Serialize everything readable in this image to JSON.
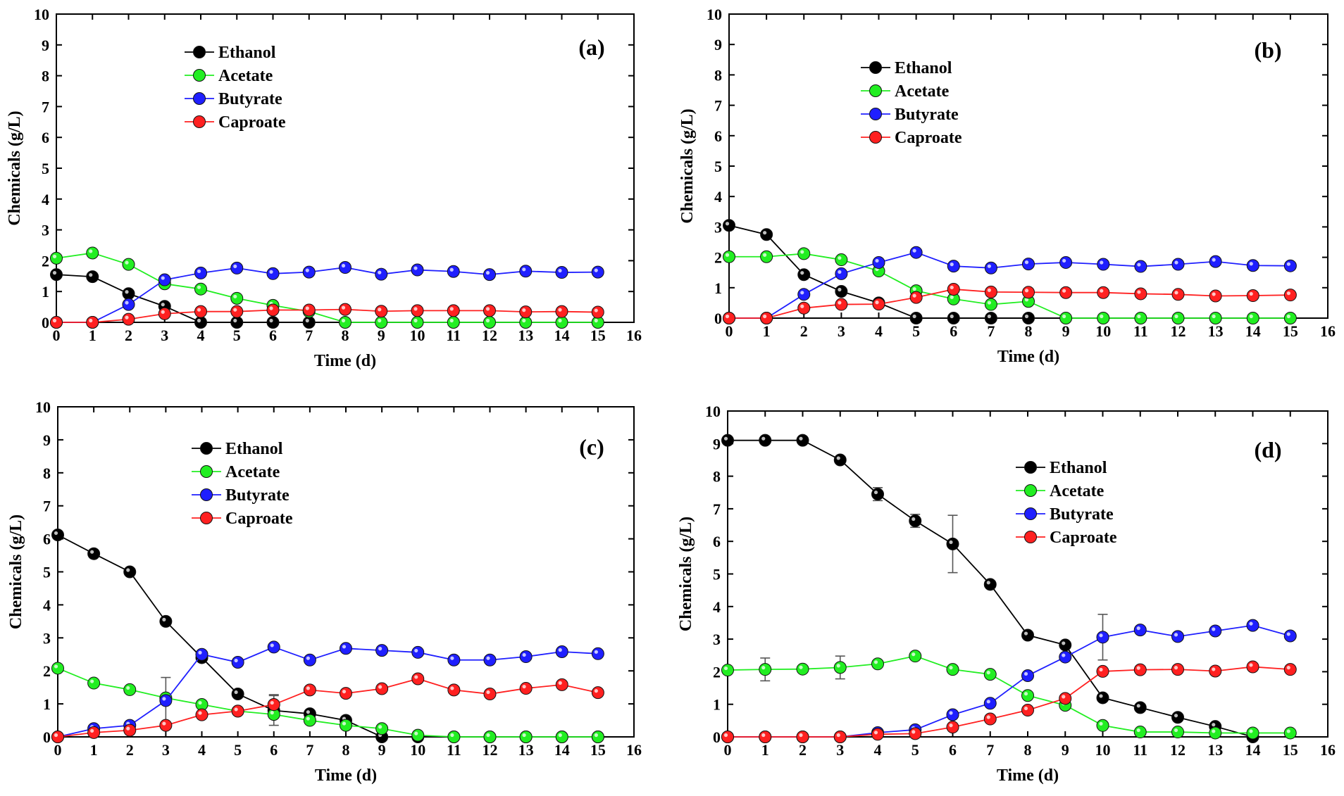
{
  "colors": {
    "Ethanol": "#000000",
    "Acetate": "#22ee22",
    "Butyrate": "#1f1fff",
    "Caproate": "#ff2020"
  },
  "chart_data": [
    {
      "type": "line",
      "panel_label": "(a)",
      "xlabel": "Time (d)",
      "ylabel": "Chemicals (g/L)",
      "xlim": [
        0,
        16
      ],
      "ylim": [
        0,
        10
      ],
      "x_ticks": [
        0,
        1,
        2,
        3,
        4,
        5,
        6,
        7,
        8,
        9,
        10,
        11,
        12,
        13,
        14,
        15,
        16
      ],
      "y_ticks": [
        0,
        1,
        2,
        3,
        4,
        5,
        6,
        7,
        8,
        9,
        10
      ],
      "legend_position": "upper-left-center",
      "x": [
        0,
        1,
        2,
        3,
        4,
        5,
        6,
        7,
        8,
        9,
        10,
        11,
        12,
        13,
        14,
        15
      ],
      "series": [
        {
          "name": "Ethanol",
          "values": [
            1.55,
            1.48,
            0.93,
            0.52,
            0,
            0,
            0,
            0,
            null,
            null,
            null,
            null,
            null,
            null,
            null,
            null
          ]
        },
        {
          "name": "Acetate",
          "values": [
            2.08,
            2.25,
            1.88,
            1.25,
            1.08,
            0.78,
            0.55,
            0.35,
            0,
            0,
            0,
            0,
            0,
            0,
            0,
            0
          ]
        },
        {
          "name": "Butyrate",
          "values": [
            0,
            0,
            0.58,
            1.38,
            1.6,
            1.76,
            1.58,
            1.63,
            1.78,
            1.56,
            1.7,
            1.65,
            1.55,
            1.66,
            1.62,
            1.63
          ]
        },
        {
          "name": "Caproate",
          "values": [
            0,
            0,
            0.1,
            0.28,
            0.35,
            0.35,
            0.4,
            0.4,
            0.42,
            0.36,
            0.38,
            0.38,
            0.38,
            0.34,
            0.35,
            0.33
          ]
        }
      ]
    },
    {
      "type": "line",
      "panel_label": "(b)",
      "xlabel": "Time (d)",
      "ylabel": "Chemicals (g/L)",
      "xlim": [
        0,
        16
      ],
      "ylim": [
        0,
        10
      ],
      "x_ticks": [
        0,
        1,
        2,
        3,
        4,
        5,
        6,
        7,
        8,
        9,
        10,
        11,
        12,
        13,
        14,
        15,
        16
      ],
      "y_ticks": [
        0,
        1,
        2,
        3,
        4,
        5,
        6,
        7,
        8,
        9,
        10
      ],
      "legend_position": "upper-left-center",
      "x": [
        0,
        1,
        2,
        3,
        4,
        5,
        6,
        7,
        8,
        9,
        10,
        11,
        12,
        13,
        14,
        15
      ],
      "series": [
        {
          "name": "Ethanol",
          "values": [
            3.05,
            2.75,
            1.43,
            0.88,
            0.5,
            0,
            0,
            0,
            0,
            null,
            null,
            null,
            null,
            null,
            null,
            null
          ]
        },
        {
          "name": "Acetate",
          "values": [
            2.02,
            2.02,
            2.12,
            1.92,
            1.55,
            0.9,
            0.63,
            0.45,
            0.55,
            0,
            0,
            0,
            0,
            0,
            0,
            0
          ]
        },
        {
          "name": "Butyrate",
          "values": [
            0,
            0,
            0.78,
            1.46,
            1.83,
            2.16,
            1.71,
            1.65,
            1.78,
            1.83,
            1.77,
            1.7,
            1.77,
            1.86,
            1.73,
            1.72
          ]
        },
        {
          "name": "Caproate",
          "values": [
            0,
            0,
            0.33,
            0.45,
            0.46,
            0.68,
            0.95,
            0.86,
            0.85,
            0.84,
            0.84,
            0.8,
            0.78,
            0.73,
            0.74,
            0.76
          ]
        }
      ]
    },
    {
      "type": "line",
      "panel_label": "(c)",
      "xlabel": "Time (d)",
      "ylabel": "Chemicals (g/L)",
      "xlim": [
        0,
        16
      ],
      "ylim": [
        0,
        10
      ],
      "x_ticks": [
        0,
        1,
        2,
        3,
        4,
        5,
        6,
        7,
        8,
        9,
        10,
        11,
        12,
        13,
        14,
        15,
        16
      ],
      "y_ticks": [
        0,
        1,
        2,
        3,
        4,
        5,
        6,
        7,
        8,
        9,
        10
      ],
      "legend_position": "upper-center",
      "x": [
        0,
        1,
        2,
        3,
        4,
        5,
        6,
        7,
        8,
        9,
        10,
        11,
        12,
        13,
        14,
        15
      ],
      "series": [
        {
          "name": "Ethanol",
          "values": [
            6.12,
            5.55,
            5.0,
            3.5,
            2.4,
            1.3,
            0.8,
            0.7,
            0.5,
            0,
            0,
            0,
            0,
            0,
            0,
            0
          ]
        },
        {
          "name": "Acetate",
          "values": [
            2.08,
            1.63,
            1.43,
            1.18,
            0.98,
            0.78,
            0.68,
            0.5,
            0.35,
            0.25,
            0.05,
            0,
            0,
            0,
            0,
            0
          ]
        },
        {
          "name": "Butyrate",
          "values": [
            0,
            0.25,
            0.35,
            1.1,
            2.5,
            2.26,
            2.72,
            2.33,
            2.68,
            2.62,
            2.56,
            2.33,
            2.33,
            2.43,
            2.58,
            2.52
          ]
        },
        {
          "name": "Caproate",
          "values": [
            0,
            0.13,
            0.2,
            0.35,
            0.67,
            0.78,
            0.98,
            1.42,
            1.32,
            1.46,
            1.76,
            1.42,
            1.3,
            1.47,
            1.58,
            1.34
          ]
        }
      ],
      "error_bars": [
        {
          "series": "Butyrate",
          "x": 3,
          "minus": 0.7,
          "plus": 0.7
        },
        {
          "series": "Ethanol",
          "x": 6,
          "minus": 0.45,
          "plus": 0.45
        },
        {
          "series": "Caproate",
          "x": 6,
          "minus": 0.3,
          "plus": 0.3
        }
      ]
    },
    {
      "type": "line",
      "panel_label": "(d)",
      "xlabel": "Time (d)",
      "ylabel": "Chemicals (g/L)",
      "xlim": [
        0,
        16
      ],
      "ylim": [
        0,
        10
      ],
      "x_ticks": [
        0,
        1,
        2,
        3,
        4,
        5,
        6,
        7,
        8,
        9,
        10,
        11,
        12,
        13,
        14,
        15,
        16
      ],
      "y_ticks": [
        0,
        1,
        2,
        3,
        4,
        5,
        6,
        7,
        8,
        9,
        10
      ],
      "legend_position": "upper-right-center",
      "x": [
        0,
        1,
        2,
        3,
        4,
        5,
        6,
        7,
        8,
        9,
        10,
        11,
        12,
        13,
        14,
        15
      ],
      "series": [
        {
          "name": "Ethanol",
          "values": [
            9.1,
            9.1,
            9.1,
            8.5,
            7.45,
            6.63,
            5.92,
            4.68,
            3.12,
            2.82,
            1.2,
            0.9,
            0.6,
            0.32,
            0,
            null
          ]
        },
        {
          "name": "Acetate",
          "values": [
            2.05,
            2.07,
            2.08,
            2.13,
            2.24,
            2.48,
            2.07,
            1.92,
            1.27,
            0.97,
            0.35,
            0.15,
            0.15,
            0.12,
            0.12,
            0.12
          ]
        },
        {
          "name": "Butyrate",
          "values": [
            0,
            0,
            0,
            0,
            0.13,
            0.22,
            0.68,
            1.03,
            1.88,
            2.45,
            3.06,
            3.28,
            3.08,
            3.25,
            3.42,
            3.1
          ]
        },
        {
          "name": "Caproate",
          "values": [
            0,
            0,
            0,
            0,
            0.08,
            0.1,
            0.3,
            0.55,
            0.82,
            1.18,
            2.01,
            2.06,
            2.07,
            2.02,
            2.15,
            2.07
          ]
        }
      ],
      "error_bars": [
        {
          "series": "Ethanol",
          "x": 4,
          "minus": 0.2,
          "plus": 0.2
        },
        {
          "series": "Ethanol",
          "x": 5,
          "minus": 0.2,
          "plus": 0.2
        },
        {
          "series": "Ethanol",
          "x": 6,
          "minus": 0.88,
          "plus": 0.88
        },
        {
          "series": "Butyrate",
          "x": 10,
          "minus": 0.7,
          "plus": 0.7
        },
        {
          "series": "Acetate",
          "x": 1,
          "minus": 0.35,
          "plus": 0.35
        },
        {
          "series": "Acetate",
          "x": 3,
          "minus": 0.35,
          "plus": 0.35
        }
      ]
    }
  ]
}
